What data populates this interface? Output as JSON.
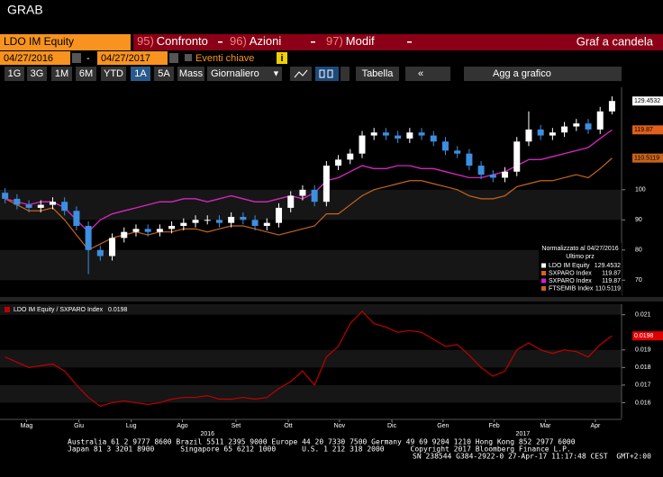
{
  "header": {
    "title": "GRAB"
  },
  "toolbar": {
    "security": "LDO IM Equity",
    "menus": [
      {
        "code": "95)",
        "label": "Confronto"
      },
      {
        "code": "96)",
        "label": "Azioni"
      },
      {
        "code": "97)",
        "label": "Modif"
      }
    ],
    "chart_type": "Graf a candela"
  },
  "dates": {
    "start": "04/27/2016",
    "separator": "-",
    "end": "04/27/2017",
    "events": "Eventi chiave"
  },
  "ranges": {
    "items": [
      "1G",
      "3G",
      "1M",
      "6M",
      "YTD",
      "1A",
      "5A",
      "Mass"
    ],
    "active": 5,
    "period": "Giornaliero",
    "table": "Tabella",
    "add": "Agg a grafico"
  },
  "chart_data": [
    {
      "type": "candlestick",
      "name": "LDO IM Equity",
      "legend_title": "Normalizzato al 04/27/2016",
      "legend_subtitle": "Ultimo prz",
      "up_color": "#ffffff",
      "down_color": "#3d8fe0",
      "x": [
        0,
        1,
        2,
        3,
        4,
        5,
        6,
        7,
        8,
        9,
        10,
        11,
        12,
        13,
        14,
        15,
        16,
        17,
        18,
        19,
        20,
        21,
        22,
        23,
        24,
        25,
        26,
        27,
        28,
        29,
        30,
        31,
        32,
        33,
        34,
        35,
        36,
        37,
        38,
        39,
        40,
        41,
        42,
        43,
        44,
        45,
        46,
        47,
        48,
        49,
        50,
        51
      ],
      "open": [
        99,
        97,
        95,
        94,
        95,
        96,
        93,
        88,
        80,
        78,
        84,
        86,
        87,
        86,
        87,
        88,
        89,
        90,
        90,
        89,
        91,
        90,
        88,
        89,
        94,
        98,
        100,
        96,
        108,
        110,
        112,
        118,
        119,
        118,
        117,
        119,
        118,
        116,
        113,
        112,
        108,
        105,
        104,
        106,
        116,
        120,
        118,
        119,
        121,
        122,
        120,
        126
      ],
      "high": [
        100.5,
        98.5,
        96.5,
        96.5,
        97.5,
        97.5,
        94.5,
        89.5,
        81.5,
        85.5,
        87.5,
        88.5,
        88.5,
        88.5,
        89.5,
        90.5,
        91.5,
        91.5,
        91.5,
        92.5,
        92.5,
        91.5,
        90.5,
        95.5,
        99.5,
        101.5,
        101.5,
        109.5,
        111.5,
        113.5,
        119.5,
        120.5,
        120.5,
        119.5,
        120.5,
        120.5,
        119.5,
        117.5,
        114.5,
        113.5,
        109.5,
        106.5,
        107.5,
        117.5,
        126,
        121.5,
        120.5,
        122.5,
        123.5,
        123.5,
        127.5,
        131
      ],
      "low": [
        95.5,
        93.5,
        92.5,
        92.5,
        93.5,
        91.5,
        86.5,
        72,
        76.5,
        76.5,
        82.5,
        84.5,
        84.5,
        84.5,
        85.5,
        86.5,
        87.5,
        88.5,
        87.5,
        87.5,
        88.5,
        86.5,
        86.5,
        87.5,
        92.5,
        96.5,
        94.5,
        94.5,
        106.5,
        108.5,
        110.5,
        116.5,
        116.5,
        115.5,
        115.5,
        116.5,
        114.5,
        111.5,
        110.5,
        106.5,
        103.5,
        102.5,
        102.5,
        104.5,
        114.5,
        116.5,
        116.5,
        117.5,
        119.5,
        118.5,
        118.5,
        125
      ],
      "close": [
        97,
        95,
        94,
        95,
        96,
        93,
        88,
        80,
        78,
        84,
        86,
        87,
        86,
        87,
        88,
        89,
        90,
        90,
        89,
        91,
        90,
        88,
        89,
        94,
        98,
        100,
        96,
        108,
        110,
        112,
        118,
        119,
        118,
        117,
        119,
        118,
        116,
        113,
        112,
        108,
        105,
        104,
        106,
        116,
        120,
        118,
        119,
        121,
        122,
        120,
        126,
        129.4532
      ],
      "series": [
        {
          "name": "SXPARO Index",
          "color": "#e2601a",
          "values": [
            97,
            96,
            95,
            96,
            96,
            94,
            90,
            86,
            90,
            92,
            93,
            94,
            95,
            96,
            96,
            97,
            97,
            96,
            97,
            98,
            97,
            96,
            96,
            97,
            98,
            97,
            99,
            103,
            104,
            106,
            108,
            107,
            107,
            108,
            108,
            107,
            107,
            106,
            105,
            104,
            104,
            105,
            106,
            108,
            110,
            110,
            111,
            112,
            113,
            114,
            117,
            119.87
          ]
        },
        {
          "name": "SXPARO Index",
          "color": "#d21fd2",
          "values": [
            97,
            96,
            95,
            96,
            96,
            94,
            90,
            86,
            90,
            92,
            93,
            94,
            95,
            96,
            96,
            97,
            97,
            96,
            97,
            98,
            97,
            96,
            96,
            97,
            98,
            97,
            99,
            103,
            104,
            106,
            108,
            107,
            107,
            108,
            108,
            107,
            107,
            106,
            105,
            104,
            104,
            105,
            106,
            108,
            110,
            110,
            111,
            112,
            113,
            114,
            117,
            119.87
          ]
        },
        {
          "name": "FTSEMIB Index",
          "color": "#c8641a",
          "values": [
            97,
            95,
            93,
            93,
            94,
            90,
            85,
            80,
            82,
            84,
            85,
            86,
            85,
            86,
            86,
            87,
            87,
            86,
            87,
            88,
            88,
            87,
            86,
            85,
            86,
            87,
            88,
            92,
            92,
            95,
            98,
            100,
            101,
            102,
            103,
            103,
            102,
            101,
            100,
            98,
            97,
            97,
            98,
            101,
            102,
            103,
            103,
            104,
            105,
            104,
            107,
            110.5119
          ]
        }
      ],
      "xlim": [
        -0.2,
        51.8
      ],
      "ylim": [
        65,
        134
      ],
      "yticks": [
        70,
        80,
        90,
        100
      ],
      "xticks": [
        {
          "value": 1.8,
          "label": "Mag"
        },
        {
          "value": 6.2,
          "label": "Giu"
        },
        {
          "value": 10.6,
          "label": "Lug"
        },
        {
          "value": 14.9,
          "label": "Ago"
        },
        {
          "value": 19.4,
          "label": "Set"
        },
        {
          "value": 23.8,
          "label": "Ott"
        },
        {
          "value": 28.1,
          "label": "Nov"
        },
        {
          "value": 32.5,
          "label": "Dic"
        },
        {
          "value": 36.8,
          "label": "Gen"
        },
        {
          "value": 41.1,
          "label": "Feb"
        },
        {
          "value": 45.4,
          "label": "Mar"
        },
        {
          "value": 49.6,
          "label": "Apr"
        }
      ],
      "year_ticks": [
        {
          "value": 17,
          "label": "2016"
        },
        {
          "value": 43.5,
          "label": "2017"
        }
      ]
    },
    {
      "type": "line",
      "series": [
        {
          "name": "LDO IM Equity / SXPARO Index",
          "color": "#c00000",
          "values": [
            0.0186,
            0.0183,
            0.018,
            0.0181,
            0.0182,
            0.0178,
            0.017,
            0.0163,
            0.0158,
            0.016,
            0.0161,
            0.016,
            0.0159,
            0.016,
            0.0162,
            0.0163,
            0.0163,
            0.0164,
            0.0162,
            0.0162,
            0.0163,
            0.0162,
            0.0163,
            0.0168,
            0.0172,
            0.0178,
            0.017,
            0.0186,
            0.0192,
            0.0205,
            0.0212,
            0.0205,
            0.0203,
            0.02,
            0.0201,
            0.02,
            0.0196,
            0.0192,
            0.0193,
            0.0187,
            0.018,
            0.0175,
            0.0178,
            0.019,
            0.0194,
            0.019,
            0.0188,
            0.019,
            0.0189,
            0.0186,
            0.0193,
            0.0198
          ]
        }
      ],
      "xlim": [
        -0.2,
        51.8
      ],
      "ylim": [
        0.0151,
        0.0216
      ],
      "yticks": [
        0.016,
        0.017,
        0.018,
        0.019,
        0.021
      ]
    }
  ],
  "footer": {
    "lines": [
      "Australia 61 2 9777 8600 Brazil 5511 2395 9000 Europe 44 20 7330 7500 Germany 49 69 9204 1210 Hong Kong 852 2977 6000",
      "Japan 81 3 3201 8900      Singapore 65 6212 1000      U.S. 1 212 318 2000      Copyright 2017 Bloomberg Finance L.P.",
      "SN 238544 G384-2922-0 27-Apr-17 11:17:48 CEST  GMT+2:00"
    ]
  }
}
